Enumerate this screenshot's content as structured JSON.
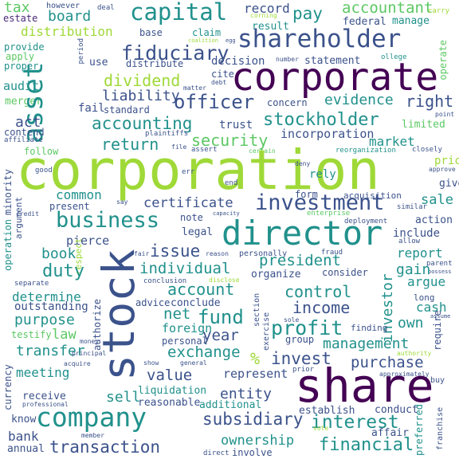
{
  "palette": {
    "yellow_green": "#9fd938",
    "green": "#5cc863",
    "teal": "#21918c",
    "blue": "#3b528b",
    "dark_purple": "#440154",
    "purple": "#482878",
    "light_green": "#addc30"
  },
  "words": {
    "corporation": "corporation",
    "corporate": "corporate",
    "share": "share",
    "stock": "stock",
    "company": "company",
    "director": "director",
    "shareholder": "shareholder",
    "asset": "asset",
    "business": "business",
    "investment": "investment",
    "capital": "capital",
    "officer": "officer",
    "profit": "profit",
    "stockholder": "stockholder",
    "fiduciary": "fiduciary",
    "dividend": "dividend",
    "accounting": "accounting",
    "board": "board",
    "pay": "pay",
    "accountant": "accountant",
    "tax": "tax",
    "distribution": "distribution",
    "record": "record",
    "result": "result",
    "federal": "federal",
    "manage": "manage",
    "return": "return",
    "security": "security",
    "evidence": "evidence",
    "right": "right",
    "liability": "liability",
    "certificate": "certificate",
    "duty": "duty",
    "president": "president",
    "account": "account",
    "control": "control",
    "income": "income",
    "management": "management",
    "fund": "fund",
    "value": "value",
    "exchange": "exchange",
    "invest": "invest",
    "purchase": "purchase",
    "interest": "interest",
    "subsidiary": "subsidiary",
    "transaction": "transaction",
    "financial": "financial",
    "transfer": "transfer",
    "meeting": "meeting",
    "purpose": "purpose",
    "determine": "determine",
    "sell": "sell",
    "issue": "issue",
    "individual": "individual",
    "year": "year",
    "net": "net",
    "market": "market",
    "investor": "investor",
    "own": "own",
    "sale": "sale",
    "report": "report",
    "argue": "argue",
    "common": "common",
    "book": "book",
    "law": "law",
    "entity": "entity",
    "ownership": "ownership",
    "bank": "bank",
    "mark_percent": "%",
    "merger": "merger",
    "audit": "audit",
    "act": "act",
    "incorporation": "incorporation",
    "statement": "statement",
    "decision": "decision",
    "trust": "trust",
    "standard": "standard",
    "fail": "fail",
    "concern": "concern",
    "limited": "limited",
    "preferred": "preferred",
    "liquidation": "liquidation",
    "reasonable": "reasonable",
    "additional": "additional",
    "conduct": "conduct",
    "affair": "affair",
    "establish": "establish",
    "cash": "cash",
    "acquisition": "acquisition",
    "action": "action",
    "include": "include",
    "gain": "gain",
    "give": "give",
    "price": "price",
    "represent": "represent",
    "foreign": "foreign",
    "personal": "personal",
    "legal": "legal",
    "note": "note",
    "present": "present",
    "pierce": "pierce",
    "outstanding": "outstanding",
    "receive": "receive",
    "annual": "annual",
    "know": "know",
    "currency": "currency",
    "testify": "testify",
    "minority": "minority",
    "operation": "operation",
    "argument": "argument",
    "authorize": "authorize",
    "conclude": "conclude",
    "advice": "advice",
    "organize": "organize",
    "consider": "consider",
    "personally": "personally",
    "group": "group",
    "finding": "finding",
    "section": "section",
    "exercise": "exercise",
    "require": "require",
    "franchise": "franchise",
    "form": "form",
    "rely": "rely",
    "estate": "estate",
    "provide": "provide",
    "apply": "apply",
    "proper": "proper",
    "use": "use",
    "distribute": "distribute",
    "base": "base",
    "claim": "claim",
    "cite": "cite",
    "number": "number",
    "operate": "operate",
    "follow": "follow",
    "contend": "contend",
    "affiliate": "affiliate",
    "good": "good",
    "plaintiffs": "plaintiffs'",
    "however": "however",
    "deal": "deal",
    "corning": "corning",
    "debt": "debt",
    "matter": "matter",
    "period": "period",
    "college": "ollege",
    "file": "file",
    "assert": "assert",
    "certain": "certain",
    "reorganization": "reorganization",
    "closely": "closely",
    "approve": "approve",
    "deny": "deny",
    "carry": "carry",
    "point": "point",
    "similar": "similar",
    "allow": "allow",
    "parent": "parent",
    "possess": "possess",
    "enterprise": "enterprise",
    "deployment": "deployment",
    "capacity": "capacity",
    "increase": "increase",
    "reason": "reason",
    "fraud": "fraud",
    "credit": "credit",
    "say": "say",
    "end": "end",
    "respect": "respect",
    "separate": "separate",
    "disclose": "disclose",
    "conclusion": "conclusion",
    "fair": "fair",
    "long": "long",
    "sole": "sole",
    "prior": "prior",
    "buy": "buy",
    "approximately": "approximately",
    "authority": "authority",
    "assume": "assume",
    "general": "general",
    "show": "show",
    "acquire": "acquire",
    "principal": "principal",
    "professional": "professional",
    "member": "member",
    "direct": "direct",
    "involve": "involve",
    "vote": "vote",
    "money": "money",
    "coalition": "coalition",
    "egg": "egg",
    "err": "err"
  }
}
